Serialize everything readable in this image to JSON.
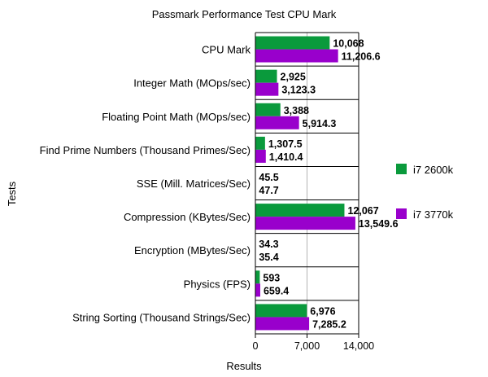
{
  "chart_data": {
    "type": "bar",
    "orientation": "horizontal",
    "title": "Passmark Performance Test CPU Mark",
    "xlabel": "Results",
    "ylabel": "Tests",
    "xlim": [
      0,
      14000
    ],
    "xticks": [
      0,
      7000,
      14000
    ],
    "xtick_labels": [
      "0",
      "7,000",
      "14,000"
    ],
    "grid": "vertical",
    "legend_position": "right",
    "categories": [
      "CPU Mark",
      "Integer Math (MOps/sec)",
      "Floating Point Math (MOps/sec)",
      "Find Prime Numbers (Thousand Primes/Sec)",
      "SSE (Mill. Matrices/Sec)",
      "Compression (KBytes/Sec)",
      "Encryption (MBytes/Sec)",
      "Physics (FPS)",
      "String Sorting (Thousand Strings/Sec)"
    ],
    "series": [
      {
        "name": "i7 2600k",
        "color": "#0a9a3c",
        "values": [
          10068,
          2925,
          3388,
          1307.5,
          45.5,
          12067,
          34.3,
          593,
          6976
        ],
        "labels": [
          "10,068",
          "2,925",
          "3,388",
          "1,307.5",
          "45.5",
          "12,067",
          "34.3",
          "593",
          "6,976"
        ]
      },
      {
        "name": "i7 3770k",
        "color": "#9900cc",
        "values": [
          11206.6,
          3123.3,
          5914.3,
          1410.4,
          47.7,
          13549.6,
          35.4,
          659.4,
          7285.2
        ],
        "labels": [
          "11,206.6",
          "3,123.3",
          "5,914.3",
          "1,410.4",
          "47.7",
          "13,549.6",
          "35.4",
          "659.4",
          "7,285.2"
        ]
      }
    ]
  }
}
